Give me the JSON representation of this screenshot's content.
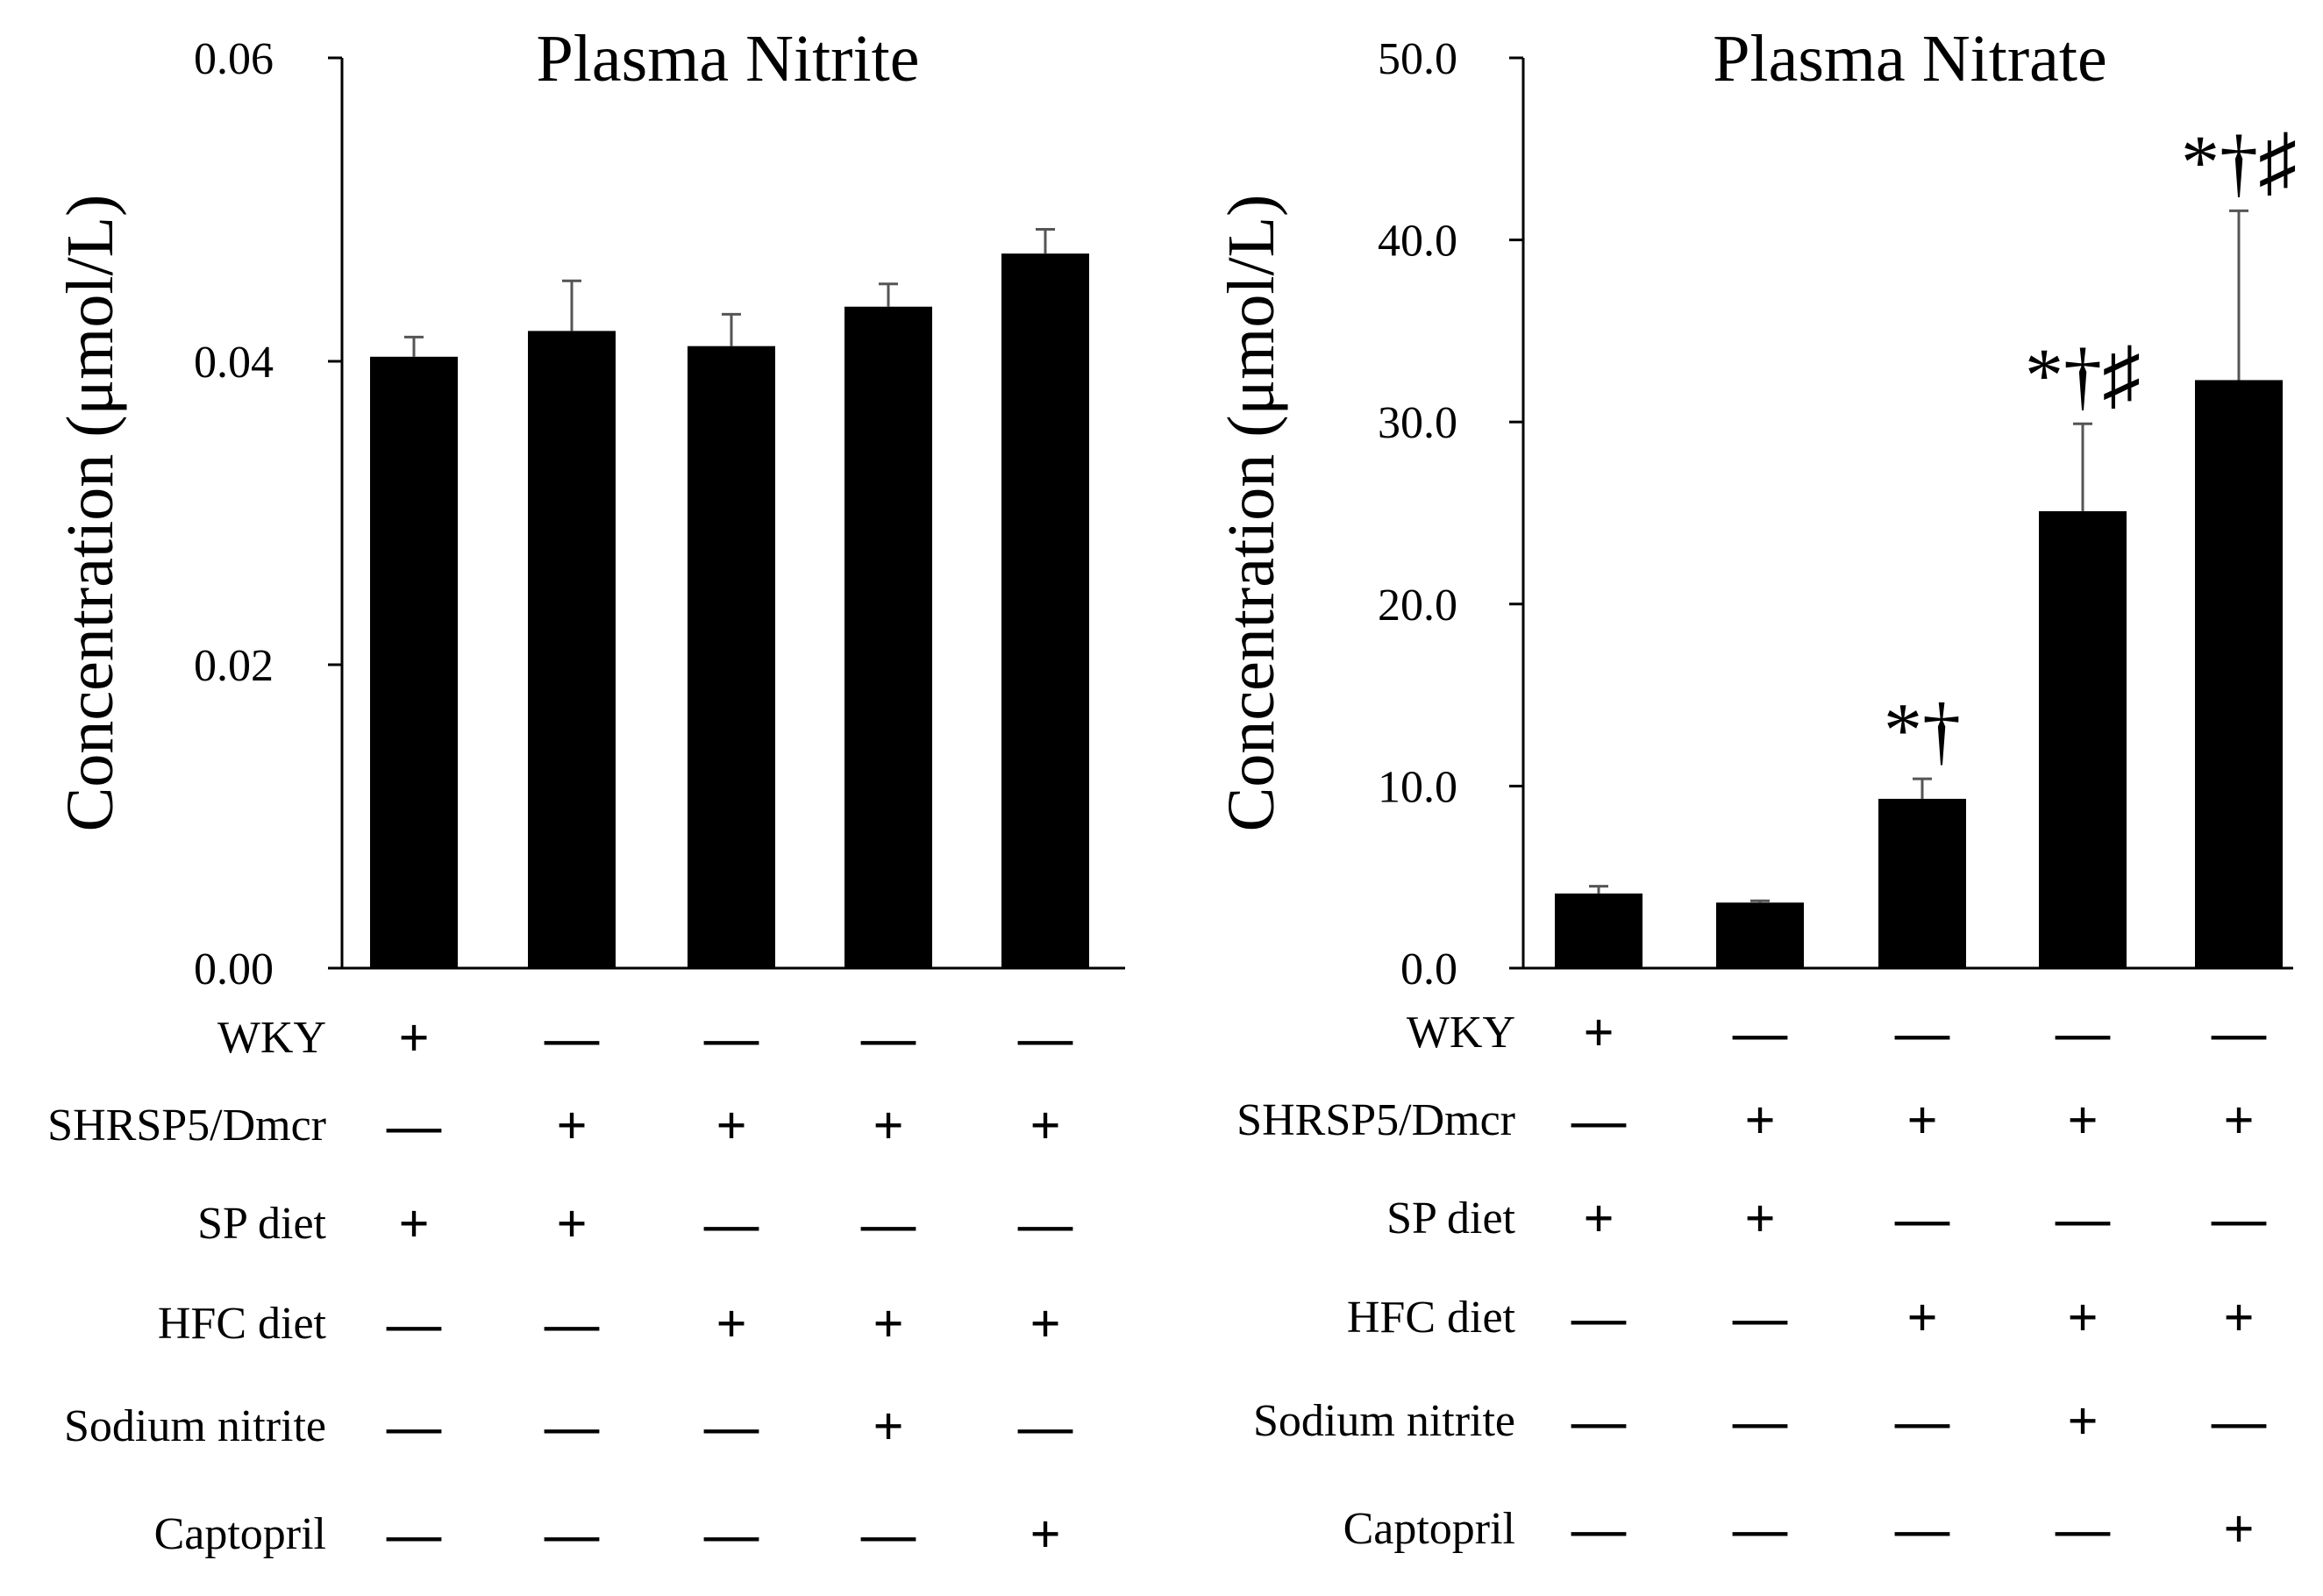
{
  "chart_data": [
    {
      "type": "bar",
      "title": "Plasma Nitrite",
      "ylabel": "Concentration  (μmol/L)",
      "xlabel": "",
      "ylim": [
        0,
        0.06
      ],
      "yticks": [
        "0.00",
        "0.02",
        "0.04",
        "0.06"
      ],
      "ytick_values": [
        0,
        0.02,
        0.04,
        0.06
      ],
      "grid": false,
      "bar_color": "#000000",
      "values": [
        0.0403,
        0.042,
        0.041,
        0.0436,
        0.0471
      ],
      "errors": [
        0.0013,
        0.0033,
        0.0021,
        0.0015,
        0.0016
      ],
      "annotations": [
        "",
        "",
        "",
        "",
        ""
      ]
    },
    {
      "type": "bar",
      "title": "Plasma Nitrate",
      "ylabel": "Concentration  (μmol/L)",
      "xlabel": "",
      "ylim": [
        0,
        50
      ],
      "yticks": [
        "0.0",
        "10.0",
        "20.0",
        "30.0",
        "40.0",
        "50.0"
      ],
      "ytick_values": [
        0,
        10,
        20,
        30,
        40,
        50
      ],
      "grid": false,
      "bar_color": "#000000",
      "values": [
        4.1,
        3.6,
        9.3,
        25.1,
        32.3
      ],
      "errors": [
        0.4,
        0.1,
        1.1,
        4.8,
        9.3
      ],
      "annotations": [
        "",
        "",
        "*†",
        "*†♯",
        "*†♯"
      ]
    }
  ],
  "groups_table": {
    "rows": [
      {
        "label": "WKY",
        "values": [
          "+",
          "—",
          "—",
          "—",
          "—"
        ]
      },
      {
        "label": "SHRSP5/Dmcr",
        "values": [
          "—",
          "+",
          "+",
          "+",
          "+"
        ]
      },
      {
        "label": "SP diet",
        "values": [
          "+",
          "+",
          "—",
          "—",
          "—"
        ]
      },
      {
        "label": "HFC  diet",
        "values": [
          "—",
          "—",
          "+",
          "+",
          "+"
        ]
      },
      {
        "label": "Sodium nitrite",
        "values": [
          "—",
          "—",
          "—",
          "+",
          "—"
        ]
      },
      {
        "label": "Captopril",
        "values": [
          "—",
          "—",
          "—",
          "—",
          "+"
        ]
      }
    ]
  }
}
